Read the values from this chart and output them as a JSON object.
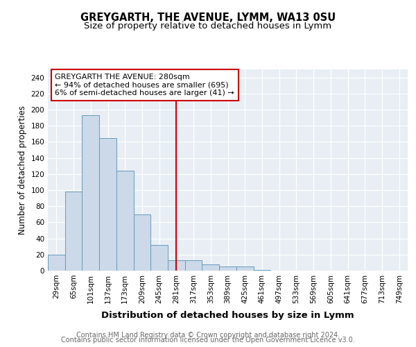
{
  "title": "GREYGARTH, THE AVENUE, LYMM, WA13 0SU",
  "subtitle": "Size of property relative to detached houses in Lymm",
  "xlabel": "Distribution of detached houses by size in Lymm",
  "ylabel": "Number of detached properties",
  "categories": [
    "29sqm",
    "65sqm",
    "101sqm",
    "137sqm",
    "173sqm",
    "209sqm",
    "245sqm",
    "281sqm",
    "317sqm",
    "353sqm",
    "389sqm",
    "425sqm",
    "461sqm",
    "497sqm",
    "533sqm",
    "569sqm",
    "605sqm",
    "641sqm",
    "677sqm",
    "713sqm",
    "749sqm"
  ],
  "values": [
    20,
    98,
    193,
    165,
    124,
    70,
    32,
    13,
    13,
    8,
    5,
    5,
    1,
    0,
    0,
    0,
    0,
    0,
    0,
    0,
    0
  ],
  "bar_color": "#ccd9e8",
  "bar_edge_color": "#6699bb",
  "marker_index": 7,
  "marker_color": "#cc0000",
  "annotation_text": "GREYGARTH THE AVENUE: 280sqm\n← 94% of detached houses are smaller (695)\n6% of semi-detached houses are larger (41) →",
  "annotation_box_color": "#cc0000",
  "ylim": [
    0,
    250
  ],
  "yticks": [
    0,
    20,
    40,
    60,
    80,
    100,
    120,
    140,
    160,
    180,
    200,
    220,
    240
  ],
  "background_color": "#e8eef4",
  "footer_line1": "Contains HM Land Registry data © Crown copyright and database right 2024.",
  "footer_line2": "Contains public sector information licensed under the Open Government Licence v3.0.",
  "title_fontsize": 10.5,
  "subtitle_fontsize": 9.5,
  "xlabel_fontsize": 9.5,
  "ylabel_fontsize": 8.5,
  "tick_fontsize": 7.5,
  "annotation_fontsize": 8,
  "footer_fontsize": 7
}
